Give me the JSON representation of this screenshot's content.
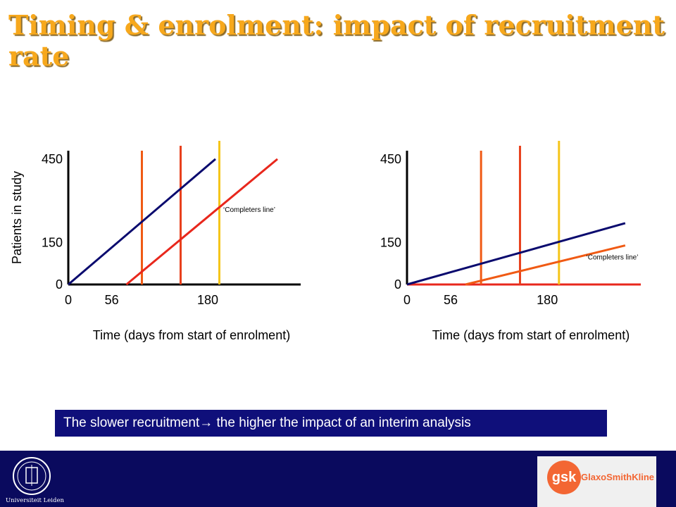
{
  "title": "Timing & enrolment: impact of recruitment rate",
  "banner": {
    "text_before": "The slower recruitment",
    "arrow": "→",
    "text_after": " the higher the impact of an interim analysis"
  },
  "footer": {
    "left_logo_text": "Universiteit Leiden",
    "right_logo_mark": "gsk",
    "right_logo_name": "GlaxoSmithKline"
  },
  "colors": {
    "title": "#f7a81c",
    "banner_bg": "#0f0f7a",
    "footer_bg": "#0a0a5e",
    "enrolment_line": "#0a0a6e",
    "completers_line": "#e8271c",
    "cut_1": "#f05a14",
    "cut_2": "#e8401c",
    "cut_3": "#f5c51a"
  },
  "chart_data": [
    {
      "type": "line",
      "xlabel": "Time (days from start of enrolment)",
      "ylabel": "Patients in study",
      "x_ticks": [
        0,
        56,
        180
      ],
      "y_ticks": [
        0,
        150,
        450
      ],
      "xlim": [
        0,
        300
      ],
      "ylim": [
        0,
        480
      ],
      "series": [
        {
          "values": [
            [
              0,
              0
            ],
            [
              190,
              450
            ]
          ]
        },
        {
          "values": [
            [
              75,
              0
            ],
            [
              270,
              450
            ]
          ]
        }
      ],
      "vertical_markers": [
        95,
        145,
        195
      ],
      "annotation": {
        "text": "‘Completers line’",
        "x": 200,
        "y": 260
      }
    },
    {
      "type": "line",
      "xlabel": "Time (days from start of enrolment)",
      "ylabel": "",
      "x_ticks": [
        0,
        56,
        180
      ],
      "y_ticks": [
        0,
        150,
        450
      ],
      "xlim": [
        0,
        300
      ],
      "ylim": [
        0,
        480
      ],
      "series": [
        {
          "values": [
            [
              0,
              0
            ],
            [
              280,
              220
            ]
          ]
        },
        {
          "values": [
            [
              75,
              0
            ],
            [
              280,
              140
            ]
          ]
        }
      ],
      "vertical_markers": [
        95,
        145,
        195
      ],
      "annotation": {
        "text": "‘Completers line’",
        "x": 230,
        "y": 90
      }
    }
  ]
}
